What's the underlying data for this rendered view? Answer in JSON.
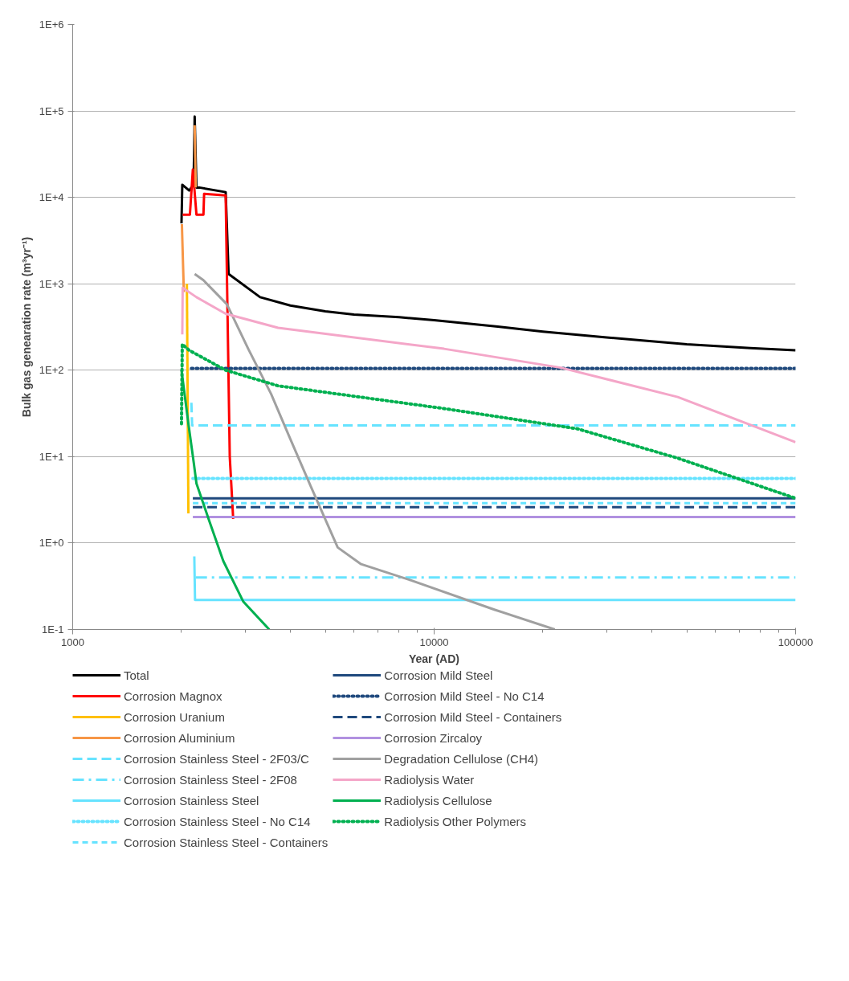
{
  "chart_data": {
    "type": "line",
    "xlabel": "Year (AD)",
    "ylabel": "Bulk gas genearation rate (m³yr⁻¹)",
    "log": "xy",
    "grid": "y",
    "legend": "bottom",
    "marker": "none",
    "xlim": [
      1000,
      100000
    ],
    "xticks": [
      1000,
      10000,
      100000
    ],
    "ylim": [
      0.1,
      1000000
    ],
    "yticks": [
      {
        "value": 0.1,
        "label": "1E-1"
      },
      {
        "value": 1,
        "label": "1E+0"
      },
      {
        "value": 10,
        "label": "1E+1"
      },
      {
        "value": 100,
        "label": "1E+2"
      },
      {
        "value": 1000,
        "label": "1E+3"
      },
      {
        "value": 10000,
        "label": "1E+4"
      },
      {
        "value": 100000,
        "label": "1E+5"
      },
      {
        "value": 1000000,
        "label": "1E+6"
      }
    ],
    "series": [
      {
        "name": "Total",
        "color": "#000000",
        "line_style": "solid",
        "x": [
          2000,
          2010,
          2100,
          2160,
          2175,
          2200,
          2240,
          2650,
          2700,
          3300,
          4000,
          5000,
          6000,
          8000,
          10000,
          15000,
          20000,
          30000,
          50000,
          75000,
          100000
        ],
        "values": [
          5000,
          14000,
          12000,
          14000,
          86000,
          13000,
          13000,
          11500,
          1300,
          700,
          560,
          480,
          440,
          410,
          380,
          320,
          280,
          240,
          200,
          180,
          170
        ]
      },
      {
        "name": "Corrosion Magnox",
        "color": "#ff0000",
        "line_style": "solid",
        "x": [
          2015,
          2110,
          2150,
          2200,
          2300,
          2310,
          2650,
          2720,
          2780
        ],
        "values": [
          6300,
          6300,
          21000,
          6300,
          6300,
          11000,
          10500,
          10,
          1.9
        ]
      },
      {
        "name": "Corrosion Uranium",
        "color": "#ffc000",
        "line_style": "solid",
        "x": [
          2070,
          2090
        ],
        "values": [
          1000,
          2.2
        ]
      },
      {
        "name": "Corrosion Aluminium",
        "color": "#f79646",
        "line_style": "solid",
        "x": [
          2005,
          2030,
          2150,
          2175,
          2190
        ],
        "values": [
          4900,
          800,
          null,
          68000,
          13000
        ]
      },
      {
        "name": "Corrosion Stainless Steel - 2F03/C",
        "color": "#66e3ff",
        "line_style": "dashed",
        "x": [
          2130,
          2140,
          100000
        ],
        "values": [
          42,
          23,
          23
        ]
      },
      {
        "name": "Corrosion Stainless Steel - 2F08",
        "color": "#66e3ff",
        "line_style": "dashdot",
        "x": [
          2190,
          100000
        ],
        "values": [
          0.4,
          0.4
        ]
      },
      {
        "name": "Corrosion Stainless Steel",
        "color": "#66e3ff",
        "line_style": "solid",
        "x": [
          2170,
          2180,
          100000
        ],
        "values": [
          0.7,
          0.22,
          0.22
        ]
      },
      {
        "name": "Corrosion Stainless Steel - No C14",
        "color": "#66e3ff",
        "line_style": "dotted",
        "x": [
          2150,
          100000
        ],
        "values": [
          5.6,
          5.6
        ]
      },
      {
        "name": "Corrosion Stainless Steel - Containers",
        "color": "#66e3ff",
        "line_style": "shortdash",
        "x": [
          2150,
          100000
        ],
        "values": [
          2.9,
          2.9
        ]
      },
      {
        "name": "Corrosion Mild Steel",
        "color": "#1f497d",
        "line_style": "solid",
        "x": [
          2150,
          100000
        ],
        "values": [
          3.3,
          3.3
        ]
      },
      {
        "name": "Corrosion Mild Steel - No C14",
        "color": "#1f497d",
        "line_style": "dotted",
        "x": [
          2130,
          100000
        ],
        "values": [
          105,
          105
        ]
      },
      {
        "name": "Corrosion Mild Steel - Containers",
        "color": "#1f497d",
        "line_style": "dashed",
        "x": [
          2150,
          100000
        ],
        "values": [
          2.6,
          2.6
        ]
      },
      {
        "name": "Corrosion Zircaloy",
        "color": "#b191e0",
        "line_style": "solid",
        "x": [
          2150,
          100000
        ],
        "values": [
          2.0,
          2.0
        ]
      },
      {
        "name": "Degradation Cellulose (CH4)",
        "color": "#a0a0a0",
        "line_style": "solid",
        "x": [
          2175,
          2300,
          2670,
          3065,
          3540,
          4000,
          4560,
          5410,
          6280,
          8640,
          14670,
          21580
        ],
        "values": [
          1300,
          1100,
          580,
          174,
          53,
          16,
          4.5,
          0.89,
          0.57,
          0.37,
          0.17,
          0.1
        ]
      },
      {
        "name": "Radiolysis Water",
        "color": "#f4a6c8",
        "line_style": "solid",
        "x": [
          2010,
          2015,
          2200,
          2650,
          3700,
          10650,
          22400,
          47200,
          100000
        ],
        "values": [
          260,
          900,
          700,
          450,
          310,
          177,
          107,
          49,
          14.7
        ]
      },
      {
        "name": "Radiolysis Cellulose",
        "color": "#00b050",
        "line_style": "solid",
        "x": [
          2000,
          2090,
          2164,
          2200,
          2377,
          2610,
          2965,
          3498
        ],
        "values": [
          100,
          24,
          8.3,
          4.9,
          1.9,
          0.62,
          0.21,
          0.1
        ]
      },
      {
        "name": "Radiolysis Other Polymers",
        "color": "#00b050",
        "line_style": "dotted",
        "x": [
          2000,
          2010,
          2100,
          2650,
          3700,
          10650,
          24900,
          47200,
          100000
        ],
        "values": [
          24,
          200,
          170,
          100,
          66,
          36,
          21,
          9.6,
          3.3
        ]
      }
    ]
  }
}
